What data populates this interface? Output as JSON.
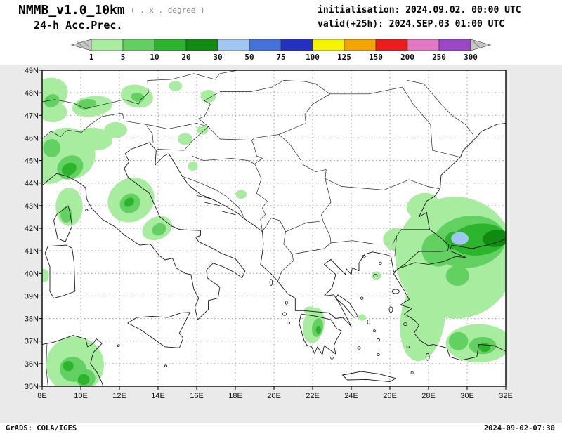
{
  "header": {
    "model": "NMMB_v1.0_10km",
    "grid_note": "( . x . degree )",
    "product": "24-h Acc.Prec.",
    "init": "initialisation: 2024.09.02.  00:00 UTC",
    "valid": "valid(+25h): 2024.SEP.03 01:00 UTC"
  },
  "colorbar": {
    "levels": [
      "1",
      "5",
      "10",
      "20",
      "30",
      "50",
      "75",
      "100",
      "125",
      "150",
      "200",
      "250",
      "300"
    ],
    "colors": [
      "#a8eca0",
      "#62d162",
      "#2cb42c",
      "#108a10",
      "#9fc7f2",
      "#4472d8",
      "#2330c0",
      "#f4f400",
      "#f4a400",
      "#ec1c1c",
      "#e377c2",
      "#9c46c8"
    ],
    "arrow_color": "#c6c6c6"
  },
  "map": {
    "lon_min": 8,
    "lon_max": 32,
    "lat_min": 35,
    "lat_max": 49,
    "grid_lon_step": 2,
    "grid_lat_step": 1,
    "lat_labels": [
      "49N",
      "48N",
      "47N",
      "46N",
      "45N",
      "44N",
      "43N",
      "42N",
      "41N",
      "40N",
      "39N",
      "38N",
      "37N",
      "36N",
      "35N"
    ],
    "lon_labels": [
      "8E",
      "10E",
      "12E",
      "14E",
      "16E",
      "18E",
      "20E",
      "22E",
      "24E",
      "26E",
      "28E",
      "30E",
      "32E"
    ]
  },
  "precip": {
    "level_colors": {
      "g1": "#a8eca0",
      "g2": "#62d162",
      "g3": "#2cb42c",
      "g4": "#108a10",
      "b1": "#9fc7f2"
    },
    "areas": [
      {
        "lon": 8.35,
        "lat": 47.95,
        "rx": 1.0,
        "ry": 0.7,
        "rot": -20,
        "lvl": "g1"
      },
      {
        "lon": 8.55,
        "lat": 47.15,
        "rx": 0.75,
        "ry": 0.45,
        "rot": 0,
        "lvl": "g1"
      },
      {
        "lon": 8.5,
        "lat": 47.65,
        "rx": 0.4,
        "ry": 0.28,
        "rot": -25,
        "lvl": "g2"
      },
      {
        "lon": 10.6,
        "lat": 47.4,
        "rx": 1.05,
        "ry": 0.45,
        "rot": -8,
        "lvl": "g1"
      },
      {
        "lon": 10.3,
        "lat": 47.5,
        "rx": 0.5,
        "ry": 0.22,
        "rot": -8,
        "lvl": "g2"
      },
      {
        "lon": 12.9,
        "lat": 47.85,
        "r x": 0,
        "rx": 0.85,
        "ry": 0.5,
        "rot": 12,
        "lvl": "g1"
      },
      {
        "lon": 12.95,
        "lat": 47.8,
        "rx": 0.35,
        "ry": 0.2,
        "rot": 12,
        "lvl": "g2"
      },
      {
        "lon": 16.6,
        "lat": 47.85,
        "rx": 0.4,
        "ry": 0.28,
        "rot": 0,
        "lvl": "g1"
      },
      {
        "lon": 14.9,
        "lat": 48.3,
        "rx": 0.35,
        "ry": 0.22,
        "rot": 0,
        "lvl": "g1"
      },
      {
        "lon": 9.3,
        "lat": 45.3,
        "rx": 1.45,
        "ry": 1.15,
        "rot": 8,
        "lvl": "g1"
      },
      {
        "lon": 8.55,
        "lat": 44.55,
        "rx": 0.85,
        "ry": 0.55,
        "rot": -25,
        "lvl": "g1"
      },
      {
        "lon": 10.7,
        "lat": 45.95,
        "rx": 0.95,
        "ry": 0.5,
        "rot": 5,
        "lvl": "g1"
      },
      {
        "lon": 11.8,
        "lat": 46.35,
        "rx": 0.6,
        "ry": 0.35,
        "rot": 0,
        "lvl": "g1"
      },
      {
        "lon": 9.45,
        "lat": 44.7,
        "rx": 0.7,
        "ry": 0.5,
        "rot": -30,
        "lvl": "g2"
      },
      {
        "lon": 8.5,
        "lat": 45.55,
        "rx": 0.45,
        "ry": 0.4,
        "rot": 0,
        "lvl": "g2"
      },
      {
        "lon": 9.4,
        "lat": 44.62,
        "rx": 0.4,
        "ry": 0.26,
        "rot": -30,
        "lvl": "g3"
      },
      {
        "lon": 9.4,
        "lat": 42.95,
        "rx": 0.7,
        "ry": 0.85,
        "rot": 0,
        "lvl": "g1"
      },
      {
        "lon": 9.25,
        "lat": 42.6,
        "rx": 0.3,
        "ry": 0.35,
        "rot": 0,
        "lvl": "g2"
      },
      {
        "lon": 12.6,
        "lat": 43.25,
        "rx": 1.25,
        "ry": 0.95,
        "rot": -35,
        "lvl": "g1"
      },
      {
        "lon": 12.55,
        "lat": 43.1,
        "rx": 0.55,
        "ry": 0.42,
        "rot": -35,
        "lvl": "g2"
      },
      {
        "lon": 12.5,
        "lat": 43.15,
        "rx": 0.28,
        "ry": 0.18,
        "rot": -35,
        "lvl": "g3"
      },
      {
        "lon": 13.95,
        "lat": 42.0,
        "rx": 0.8,
        "ry": 0.5,
        "rot": -25,
        "lvl": "g1"
      },
      {
        "lon": 14.05,
        "lat": 41.95,
        "rx": 0.38,
        "ry": 0.26,
        "rot": -25,
        "lvl": "g2"
      },
      {
        "lon": 15.4,
        "lat": 45.95,
        "rx": 0.38,
        "ry": 0.26,
        "rot": 0,
        "lvl": "g1"
      },
      {
        "lon": 16.3,
        "lat": 46.35,
        "rx": 0.3,
        "ry": 0.2,
        "rot": 0,
        "lvl": "g1"
      },
      {
        "lon": 15.8,
        "lat": 44.75,
        "rx": 0.26,
        "ry": 0.2,
        "rot": 0,
        "lvl": "g1"
      },
      {
        "lon": 18.3,
        "lat": 43.5,
        "rx": 0.28,
        "ry": 0.2,
        "rot": 0,
        "lvl": "g1"
      },
      {
        "lon": 22.05,
        "lat": 37.7,
        "rx": 0.55,
        "ry": 0.8,
        "rot": 10,
        "lvl": "g1"
      },
      {
        "lon": 22.25,
        "lat": 37.6,
        "rx": 0.28,
        "ry": 0.42,
        "rot": 10,
        "lvl": "g2"
      },
      {
        "lon": 22.3,
        "lat": 37.5,
        "rx": 0.13,
        "ry": 0.18,
        "rot": 0,
        "lvl": "g3"
      },
      {
        "lon": 21.85,
        "lat": 38.35,
        "rx": 0.3,
        "ry": 0.18,
        "rot": 0,
        "lvl": "g1"
      },
      {
        "lon": 25.3,
        "lat": 39.9,
        "rx": 0.25,
        "ry": 0.18,
        "rot": 0,
        "lvl": "g1"
      },
      {
        "lon": 24.55,
        "lat": 38.05,
        "rx": 0.2,
        "ry": 0.15,
        "rot": 0,
        "lvl": "g1"
      },
      {
        "lon": 8.1,
        "lat": 39.9,
        "rx": 0.25,
        "ry": 0.3,
        "rot": 0,
        "lvl": "g1"
      },
      {
        "lon": 9.7,
        "lat": 35.95,
        "rx": 1.5,
        "ry": 1.25,
        "rot": 0,
        "lvl": "g1"
      },
      {
        "lon": 9.6,
        "lat": 35.75,
        "rx": 0.7,
        "ry": 0.55,
        "rot": 15,
        "lvl": "g2"
      },
      {
        "lon": 9.35,
        "lat": 35.9,
        "rx": 0.28,
        "ry": 0.22,
        "rot": 0,
        "lvl": "g3"
      },
      {
        "lon": 10.25,
        "lat": 35.35,
        "rx": 0.5,
        "ry": 0.4,
        "rot": 0,
        "lvl": "g2"
      },
      {
        "lon": 10.15,
        "lat": 35.3,
        "rx": 0.3,
        "ry": 0.24,
        "rot": 0,
        "lvl": "g3"
      },
      {
        "lon": 29.4,
        "lat": 40.7,
        "rx": 3.1,
        "ry": 2.7,
        "rot": -12,
        "lvl": "g1"
      },
      {
        "lon": 27.7,
        "lat": 38.0,
        "rx": 1.15,
        "ry": 1.9,
        "rot": 8,
        "lvl": "g1"
      },
      {
        "lon": 30.6,
        "lat": 36.9,
        "rx": 1.7,
        "ry": 0.85,
        "rot": 0,
        "lvl": "g1"
      },
      {
        "lon": 26.35,
        "lat": 41.5,
        "rx": 0.7,
        "ry": 0.5,
        "rot": 0,
        "lvl": "g1"
      },
      {
        "lon": 27.7,
        "lat": 43.0,
        "rx": 0.85,
        "ry": 0.55,
        "rot": -18,
        "lvl": "g1"
      },
      {
        "lon": 30.1,
        "lat": 41.4,
        "rx": 1.9,
        "ry": 1.15,
        "rot": -8,
        "lvl": "g2"
      },
      {
        "lon": 28.5,
        "lat": 41.05,
        "rx": 0.85,
        "ry": 0.75,
        "rot": 0,
        "lvl": "g2"
      },
      {
        "lon": 29.5,
        "lat": 39.9,
        "rx": 0.6,
        "ry": 0.45,
        "rot": 0,
        "lvl": "g2"
      },
      {
        "lon": 30.6,
        "lat": 41.5,
        "rx": 1.45,
        "ry": 0.7,
        "rot": -6,
        "lvl": "g3"
      },
      {
        "lon": 31.5,
        "lat": 41.55,
        "rx": 0.7,
        "ry": 0.38,
        "rot": -6,
        "lvl": "g4"
      },
      {
        "lon": 29.35,
        "lat": 41.45,
        "rx": 0.5,
        "ry": 0.4,
        "rot": 0,
        "lvl": "g3"
      },
      {
        "lon": 29.62,
        "lat": 41.55,
        "rx": 0.45,
        "ry": 0.28,
        "rot": 0,
        "lvl": "b1"
      },
      {
        "lon": 29.55,
        "lat": 37.0,
        "rx": 0.5,
        "ry": 0.4,
        "rot": 0,
        "lvl": "g2"
      },
      {
        "lon": 30.8,
        "lat": 36.8,
        "rx": 0.7,
        "ry": 0.38,
        "rot": 0,
        "lvl": "g2"
      },
      {
        "lon": 30.9,
        "lat": 36.72,
        "rx": 0.3,
        "ry": 0.2,
        "rot": 0,
        "lvl": "g3"
      }
    ]
  },
  "footer": {
    "left": "GrADS: COLA/IGES",
    "right": "2024-09-02-07:30"
  }
}
